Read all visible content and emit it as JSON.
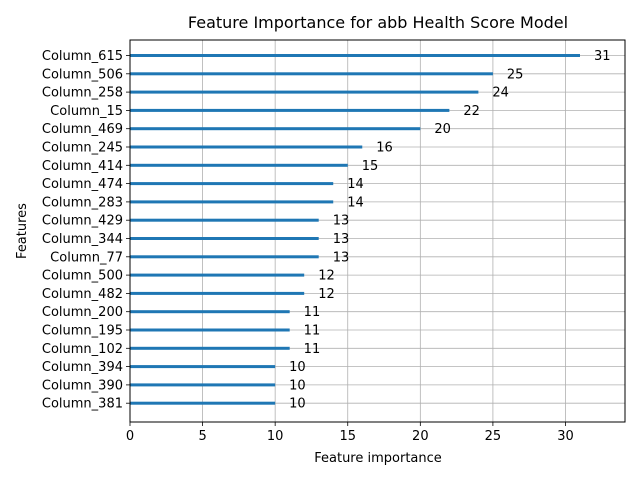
{
  "chart_data": {
    "type": "bar",
    "orientation": "horizontal",
    "title": "Feature Importance for abb Health Score Model",
    "xlabel": "Feature importance",
    "ylabel": "Features",
    "xlim": [
      0,
      34.1
    ],
    "xticks": [
      0,
      5,
      10,
      15,
      20,
      25,
      30
    ],
    "grid": true,
    "bar_color": "#1f77b4",
    "categories": [
      "Column_615",
      "Column_506",
      "Column_258",
      "Column_15",
      "Column_469",
      "Column_245",
      "Column_414",
      "Column_474",
      "Column_283",
      "Column_429",
      "Column_344",
      "Column_77",
      "Column_500",
      "Column_482",
      "Column_200",
      "Column_195",
      "Column_102",
      "Column_394",
      "Column_390",
      "Column_381"
    ],
    "values": [
      31,
      25,
      24,
      22,
      20,
      16,
      15,
      14,
      14,
      13,
      13,
      13,
      12,
      12,
      11,
      11,
      11,
      10,
      10,
      10
    ]
  }
}
